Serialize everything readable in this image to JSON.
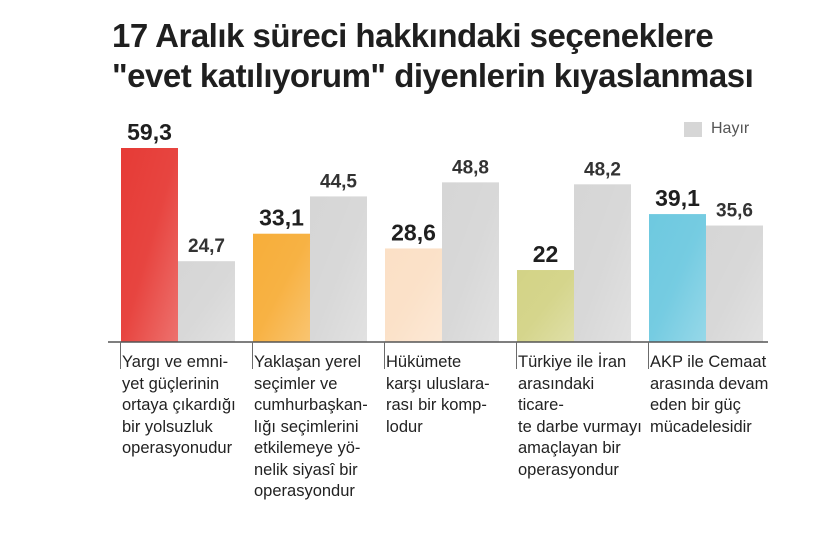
{
  "title_lines": [
    "17 Aralık süreci hakkındaki seçeneklere",
    "\"evet katılıyorum\" diyenlerin kıyaslanması"
  ],
  "chart_data": {
    "type": "bar",
    "categories": [
      "Yargı ve emni-\nyet güçlerinin\nortaya çıkardığı\nbir yolsuzluk\noperasyonudur",
      "Yaklaşan yerel\nseçimler ve\ncumhurbaşkan-\nlığı seçimlerini\netkilemeye yö-\nnelik siyasî bir\noperasyondur",
      "Hükümete\nkarşı uluslara-\nrası bir komp-\nlodur",
      "Türkiye ile İran\narasındaki ticare-\nte darbe vurmayı\namaçlayan bir\noperasyondur",
      "AKP ile Cemaat\narasında devam\neden bir güç\nmücadelesidir"
    ],
    "series": [
      {
        "values": [
          59.3,
          33.1,
          28.6,
          22,
          39.1
        ],
        "labels": [
          "59,3",
          "33,1",
          "28,6",
          "22",
          "39,1"
        ],
        "colors": [
          "#e63b36",
          "#f7ae3a",
          "#fbe0c6",
          "#d3d386",
          "#6ec9e0"
        ]
      },
      {
        "name": "Hayır",
        "values": [
          24.7,
          44.5,
          48.8,
          48.2,
          35.6
        ],
        "labels": [
          "24,7",
          "44,5",
          "48,8",
          "48,2",
          "35,6"
        ],
        "color": "#d6d6d6"
      }
    ],
    "ylim": [
      0,
      60
    ],
    "legend": {
      "position": "top-right"
    },
    "grid": false
  }
}
